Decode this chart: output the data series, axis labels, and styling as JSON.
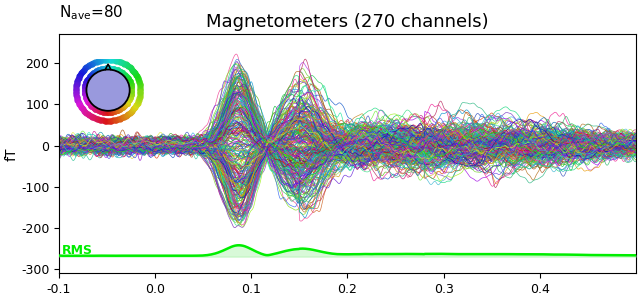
{
  "title": "Magnetometers (270 channels)",
  "ylabel": "fT",
  "xlim": [
    -0.1,
    0.5
  ],
  "ylim": [
    -310,
    270
  ],
  "yticks": [
    -300,
    -200,
    -100,
    0,
    100,
    200
  ],
  "xticks": [
    -0.1,
    0.0,
    0.1,
    0.2,
    0.3,
    0.4
  ],
  "n_channels": 270,
  "rms_label": "RMS",
  "rms_color": "#00ee00",
  "rms_fill_color": "#90ee90",
  "rms_fill_alpha": 0.35,
  "rms_baseline": -270,
  "title_fontsize": 13,
  "nave_fontsize": 11,
  "line_alpha": 0.85,
  "line_width": 0.5
}
